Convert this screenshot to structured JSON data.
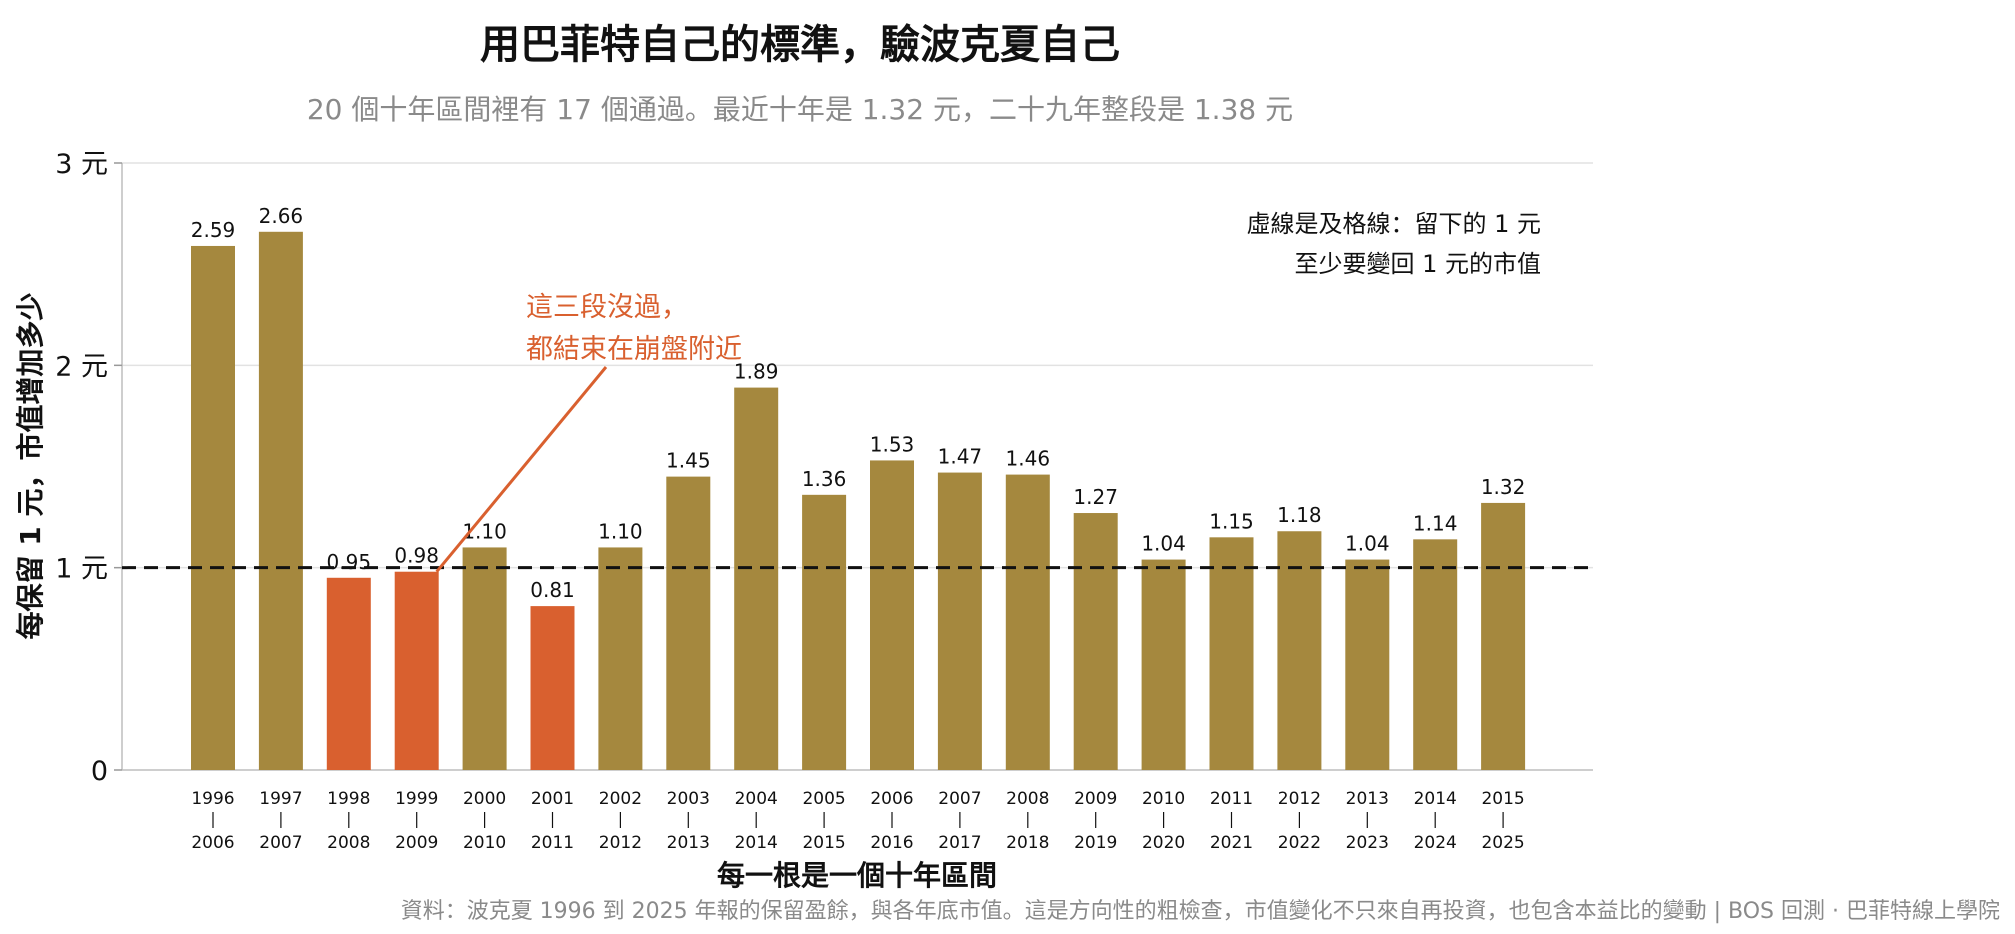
{
  "chart_data": {
    "type": "bar",
    "title": "用巴菲特自己的標準，驗波克夏自己",
    "subtitle": "20 個十年區間裡有 17 個通過。最近十年是 1.32 元，二十九年整段是 1.38 元",
    "xlabel": "每一根是一個十年區間",
    "ylabel": "每保留 1 元，市值增加多少",
    "ylim": [
      0,
      3
    ],
    "yticks": [
      {
        "value": 0,
        "label": "0"
      },
      {
        "value": 1,
        "label": "1 元"
      },
      {
        "value": 2,
        "label": "2 元"
      },
      {
        "value": 3,
        "label": "3 元"
      }
    ],
    "grid": "horizontal",
    "categories": [
      {
        "start": "1996",
        "end": "2006"
      },
      {
        "start": "1997",
        "end": "2007"
      },
      {
        "start": "1998",
        "end": "2008"
      },
      {
        "start": "1999",
        "end": "2009"
      },
      {
        "start": "2000",
        "end": "2010"
      },
      {
        "start": "2001",
        "end": "2011"
      },
      {
        "start": "2002",
        "end": "2012"
      },
      {
        "start": "2003",
        "end": "2013"
      },
      {
        "start": "2004",
        "end": "2014"
      },
      {
        "start": "2005",
        "end": "2015"
      },
      {
        "start": "2006",
        "end": "2016"
      },
      {
        "start": "2007",
        "end": "2017"
      },
      {
        "start": "2008",
        "end": "2018"
      },
      {
        "start": "2009",
        "end": "2019"
      },
      {
        "start": "2010",
        "end": "2020"
      },
      {
        "start": "2011",
        "end": "2021"
      },
      {
        "start": "2012",
        "end": "2022"
      },
      {
        "start": "2013",
        "end": "2023"
      },
      {
        "start": "2014",
        "end": "2024"
      },
      {
        "start": "2015",
        "end": "2025"
      }
    ],
    "values": [
      2.59,
      2.66,
      0.95,
      0.98,
      1.1,
      0.81,
      1.1,
      1.45,
      1.89,
      1.36,
      1.53,
      1.47,
      1.46,
      1.27,
      1.04,
      1.15,
      1.18,
      1.04,
      1.14,
      1.32
    ],
    "value_labels": [
      "2.59",
      "2.66",
      "0.95",
      "0.98",
      "1.10",
      "0.81",
      "1.10",
      "1.45",
      "1.89",
      "1.36",
      "1.53",
      "1.47",
      "1.46",
      "1.27",
      "1.04",
      "1.15",
      "1.18",
      "1.04",
      "1.14",
      "1.32"
    ],
    "highlighted": [
      false,
      false,
      true,
      true,
      false,
      true,
      false,
      false,
      false,
      false,
      false,
      false,
      false,
      false,
      false,
      false,
      false,
      false,
      false,
      false
    ],
    "colors": {
      "pass": "#a5883e",
      "fail": "#d9602f",
      "reference_line": "#111111",
      "annotation": "#d9602f",
      "grid": "#e2e2e2"
    },
    "reference_line": {
      "value": 1
    },
    "legend_note": {
      "line1": "虛線是及格線：留下的 1 元",
      "line2": "至少要變回 1 元的市值",
      "placement": "top-right"
    },
    "annotation": {
      "line1": "這三段沒過，",
      "line2": "都結束在崩盤附近",
      "points_to_index": 3
    }
  },
  "footer": "資料：波克夏 1996 到 2025 年報的保留盈餘，與各年底市值。這是方向性的粗檢查，市值變化不只來自再投資，也包含本益比的變動 | BOS 回測 ·  巴菲特線上學院"
}
